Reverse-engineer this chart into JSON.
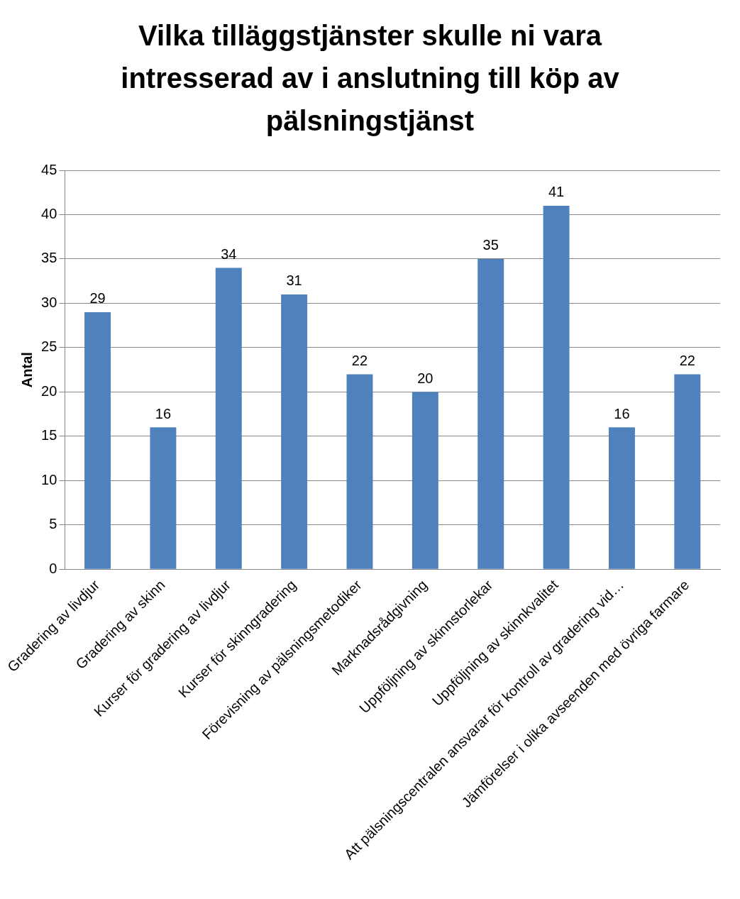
{
  "chart_data": {
    "type": "bar",
    "title": "Vilka tilläggstjänster skulle ni vara intresserad av i anslutning till köp av pälsningstjänst",
    "ylabel": "Antal",
    "categories": [
      "Gradering av livdjur",
      "Gradering av skinn",
      "Kurser för gradering av livdjur",
      "Kurser för skinngradering",
      "Förevisning av pälsningsmetodiker",
      "Marknadsrådgivning",
      "Uppföljning av skinnstorlekar",
      "Uppföljning av skinnkvalitet",
      "Att pälsningscentralen ansvarar för kontroll av gradering vid…",
      "Jämförelser i olika avseenden med övriga farmare"
    ],
    "values": [
      29,
      16,
      34,
      31,
      22,
      20,
      35,
      41,
      16,
      22
    ],
    "color": "#4f81bd",
    "ylim": [
      0,
      45
    ],
    "yticks": [
      0,
      5,
      10,
      15,
      20,
      25,
      30,
      35,
      40,
      45
    ],
    "grid": "y",
    "data_labels": true,
    "legend": false
  }
}
